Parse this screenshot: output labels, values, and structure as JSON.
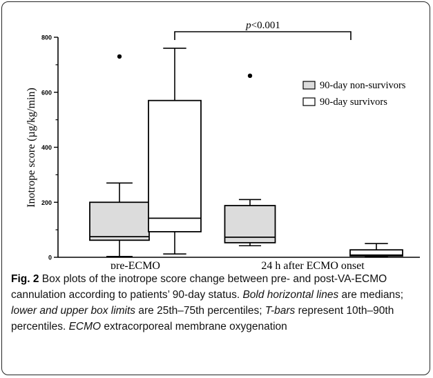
{
  "chart_data": {
    "type": "box",
    "ylabel": "Inotrope score (µg/kg/min)",
    "ylim": [
      0,
      800
    ],
    "yticks": [
      0,
      200,
      400,
      600,
      800
    ],
    "categories": [
      "pre-ECMO",
      "24 h after ECMO onset"
    ],
    "series": [
      {
        "name": "90-day non-survivors",
        "fill": "#dcdcdc",
        "boxes": [
          {
            "category": "pre-ECMO",
            "whisker_low": 3,
            "q1": 62,
            "median": 75,
            "q3": 200,
            "whisker_high": 270,
            "outliers": [
              730
            ]
          },
          {
            "category": "24 h after ECMO onset",
            "whisker_low": 42,
            "q1": 53,
            "median": 73,
            "q3": 188,
            "whisker_high": 210,
            "outliers": [
              660
            ]
          }
        ]
      },
      {
        "name": "90-day survivors",
        "fill": "#ffffff",
        "boxes": [
          {
            "category": "pre-ECMO",
            "whisker_low": 12,
            "q1": 93,
            "median": 142,
            "q3": 570,
            "whisker_high": 760,
            "outliers": []
          },
          {
            "category": "24 h after ECMO onset",
            "whisker_low": 3,
            "q1": 5,
            "median": 8,
            "q3": 27,
            "whisker_high": 50,
            "outliers": []
          }
        ]
      }
    ],
    "annotation": {
      "text": "p<0.001",
      "italic_part": "p",
      "rest": "<0.001"
    },
    "legend_position": "top-right",
    "grid": false
  },
  "caption": {
    "label": "Fig. 2",
    "text1": " Box plots of the inotrope score change between pre- and post-VA-ECMO cannulation according to patients’ 90-day status. ",
    "i1": "Bold horizontal lines",
    "text2": " are medians; ",
    "i2": "lower and upper box limits",
    "text3": " are 25th–75th percentiles; ",
    "i3": "T-bars",
    "text4": " represent 10th–90th percentiles. ",
    "i4": "ECMO",
    "text5": " extracorporeal membrane oxygenation"
  }
}
